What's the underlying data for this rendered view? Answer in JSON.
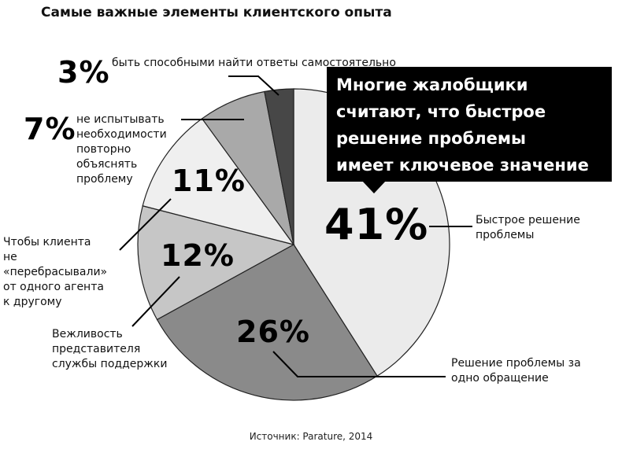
{
  "chart_data": {
    "type": "pie",
    "title": "Самые важные элементы клиентского опыта",
    "slices": [
      {
        "label": "Быстрое решение проблемы",
        "value": 41,
        "value_label": "41%",
        "color": "#ebebeb"
      },
      {
        "label": "Решение проблемы за одно обращение",
        "value": 26,
        "value_label": "26%",
        "color": "#8a8a8a"
      },
      {
        "label": "Вежливость представителя службы поддержки",
        "value": 12,
        "value_label": "12%",
        "color": "#c6c6c6"
      },
      {
        "label": "Чтобы клиента не «перебрасывали» от одного агента к другому",
        "value": 11,
        "value_label": "11%",
        "color": "#efefef"
      },
      {
        "label": "не испытывать необходимости повторно объяснять проблему",
        "value": 7,
        "value_label": "7%",
        "color": "#a9a9a9"
      },
      {
        "label": "быть способными найти ответы самостоятельно",
        "value": 3,
        "value_label": "3%",
        "color": "#474747"
      }
    ],
    "callout": "Многие жалобщики считают, что быстрое решение проблемы имеет ключевое значение",
    "source": "Источник: Parature, 2014"
  }
}
